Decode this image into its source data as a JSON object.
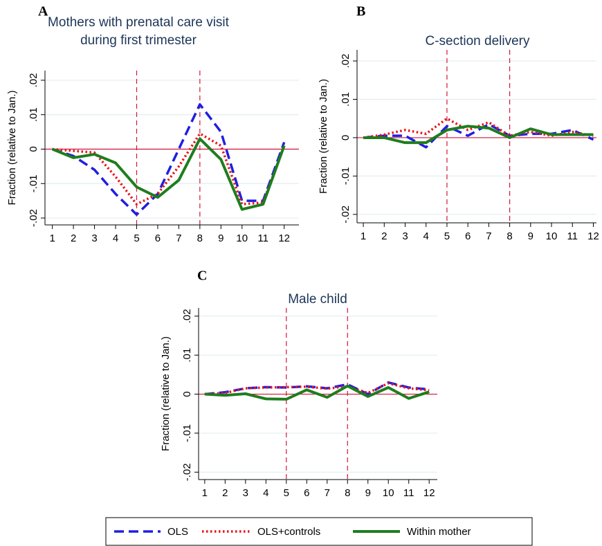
{
  "chart_data": [
    {
      "type": "line",
      "panel": "A",
      "title": [
        "Mothers with prenatal care visit",
        "during first trimester"
      ],
      "ylabel": "Fraction (relative to Jan.)",
      "x": [
        1,
        2,
        3,
        4,
        5,
        6,
        7,
        8,
        9,
        10,
        11,
        12
      ],
      "xticks": [
        1,
        2,
        3,
        4,
        5,
        6,
        7,
        8,
        9,
        10,
        11,
        12
      ],
      "xlim": [
        0.65,
        12.7
      ],
      "ylim": [
        -0.022,
        0.0228
      ],
      "yticks": [
        {
          "value": -0.02,
          "label": "-.02"
        },
        {
          "value": -0.01,
          "label": "-.01"
        },
        0,
        {
          "value": 0.01,
          "label": ".01"
        },
        {
          "value": 0.02,
          "label": ".02"
        }
      ],
      "grid": true,
      "hline": 0,
      "vlines": [
        5,
        8
      ],
      "series": [
        {
          "name": "OLS",
          "color": "#1f1fe0",
          "style": "dashed",
          "values": [
            0,
            -0.002,
            -0.006,
            -0.013,
            -0.019,
            -0.013,
            0.0,
            0.013,
            0.005,
            -0.015,
            -0.015,
            0.002
          ]
        },
        {
          "name": "OLS+controls",
          "color": "#e8141c",
          "style": "dotted",
          "values": [
            0,
            -0.0005,
            -0.001,
            -0.008,
            -0.016,
            -0.013,
            -0.005,
            0.0045,
            0.001,
            -0.016,
            -0.0155,
            0.001
          ]
        },
        {
          "name": "Within mother",
          "color": "#1e7d1e",
          "style": "solid",
          "values": [
            0,
            -0.0025,
            -0.0015,
            -0.004,
            -0.011,
            -0.014,
            -0.009,
            0.003,
            -0.003,
            -0.0175,
            -0.016,
            0.001
          ]
        }
      ]
    },
    {
      "type": "line",
      "panel": "B",
      "title": [
        "C-section delivery"
      ],
      "ylabel": "Fraction (relative to Jan.)",
      "x": [
        1,
        2,
        3,
        4,
        5,
        6,
        7,
        8,
        9,
        10,
        11,
        12
      ],
      "xticks": [
        1,
        2,
        3,
        4,
        5,
        6,
        7,
        8,
        9,
        10,
        11,
        12
      ],
      "xlim": [
        0.7,
        12.15
      ],
      "ylim": [
        -0.0222,
        0.0229
      ],
      "yticks": [
        {
          "value": -0.02,
          "label": "-.02"
        },
        {
          "value": -0.01,
          "label": "-.01"
        },
        0,
        {
          "value": 0.01,
          "label": ".01"
        },
        {
          "value": 0.02,
          "label": ".02"
        }
      ],
      "grid": true,
      "hline": 0,
      "vlines": [
        5,
        8
      ],
      "series": [
        {
          "name": "OLS",
          "color": "#1f1fe0",
          "style": "dashed",
          "values": [
            0,
            0.0005,
            0.0005,
            -0.0025,
            0.003,
            0.0005,
            0.0035,
            0.0005,
            0.001,
            0.001,
            0.002,
            -0.0005
          ]
        },
        {
          "name": "OLS+controls",
          "color": "#e8141c",
          "style": "dotted",
          "values": [
            0,
            0.0008,
            0.002,
            0.001,
            0.005,
            0.002,
            0.004,
            0.0005,
            0.0015,
            0.0005,
            0.0015,
            0.0005
          ]
        },
        {
          "name": "Within mother",
          "color": "#1e7d1e",
          "style": "solid",
          "values": [
            0,
            0,
            -0.0013,
            -0.0013,
            0.002,
            0.003,
            0.0025,
            0,
            0.0023,
            0.0008,
            0.0008,
            0.0008
          ]
        }
      ]
    },
    {
      "type": "line",
      "panel": "C",
      "title": [
        "Male child"
      ],
      "ylabel": "Fraction (relative to Jan.)",
      "x": [
        1,
        2,
        3,
        4,
        5,
        6,
        7,
        8,
        9,
        10,
        11,
        12
      ],
      "xticks": [
        1,
        2,
        3,
        4,
        5,
        6,
        7,
        8,
        9,
        10,
        11,
        12
      ],
      "xlim": [
        0.7,
        12.4
      ],
      "ylim": [
        -0.0219,
        0.0221
      ],
      "yticks": [
        {
          "value": -0.02,
          "label": "-.02"
        },
        {
          "value": -0.01,
          "label": "-.01"
        },
        0,
        {
          "value": 0.01,
          "label": ".01"
        },
        {
          "value": 0.02,
          "label": ".02"
        }
      ],
      "grid": true,
      "hline": 0,
      "vlines": [
        5,
        8
      ],
      "series": [
        {
          "name": "OLS",
          "color": "#1f1fe0",
          "style": "dashed",
          "values": [
            0,
            0.0005,
            0.0015,
            0.0018,
            0.0017,
            0.002,
            0.0015,
            0.0025,
            0,
            0.003,
            0.0017,
            0.0012
          ]
        },
        {
          "name": "OLS+controls",
          "color": "#e8141c",
          "style": "dotted",
          "values": [
            0,
            0.0003,
            0.0015,
            0.0017,
            0.0018,
            0.0019,
            0.0014,
            0.002,
            0.0003,
            0.0028,
            0.0015,
            0.001
          ]
        },
        {
          "name": "Within mother",
          "color": "#1e7d1e",
          "style": "solid",
          "values": [
            0,
            -0.0003,
            0.0001,
            -0.0012,
            -0.0013,
            0.0011,
            -0.0008,
            0.0021,
            -0.0006,
            0.0017,
            -0.0011,
            0.0006
          ]
        }
      ]
    }
  ]
}
